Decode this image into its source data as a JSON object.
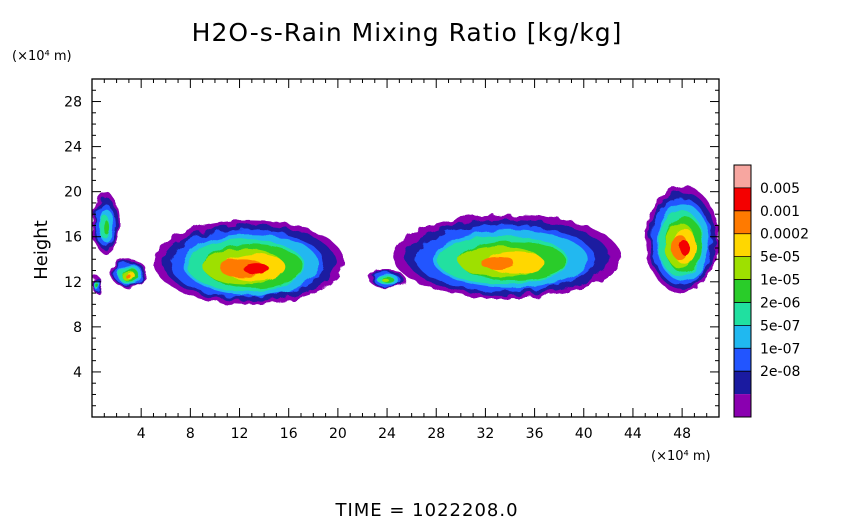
{
  "chart_data": {
    "type": "heatmap",
    "title": "H2O-s-Rain Mixing Ratio [kg/kg]",
    "ylabel": "Height",
    "y_unit": "(×10⁴ m)",
    "x_unit": "(×10⁴ m)",
    "x_ticks": [
      "4",
      "8",
      "12",
      "16",
      "20",
      "24",
      "28",
      "32",
      "36",
      "40",
      "44",
      "48"
    ],
    "y_ticks": [
      "4",
      "8",
      "12",
      "16",
      "20",
      "24",
      "28"
    ],
    "xlim": [
      0,
      51
    ],
    "ylim": [
      0,
      30
    ],
    "colorbar": {
      "labels": [
        "0.005",
        "0.001",
        "0.0002",
        "5e-05",
        "1e-05",
        "2e-06",
        "5e-07",
        "1e-07",
        "2e-08"
      ],
      "colors": [
        "#f7a6a0",
        "#f40000",
        "#ff7a00",
        "#ffd700",
        "#9ee000",
        "#29cc29",
        "#20e0a0",
        "#20b8f0",
        "#2255ff",
        "#1a1aa0",
        "#8a00b0"
      ]
    },
    "regions": [
      {
        "name": "left-edge-upper",
        "x": [
          0,
          2.2
        ],
        "y": [
          14.5,
          20
        ],
        "level": 2
      },
      {
        "name": "left-edge-lower",
        "x": [
          0,
          0.8
        ],
        "y": [
          11,
          12.5
        ],
        "level": 2
      },
      {
        "name": "left-blob",
        "x": [
          1.5,
          4.5
        ],
        "y": [
          11.5,
          14
        ],
        "level": 5
      },
      {
        "name": "main-cluster-west",
        "x": [
          5,
          20.5
        ],
        "y": [
          10,
          17.5
        ],
        "level": 6
      },
      {
        "name": "small-patch",
        "x": [
          22.5,
          25.5
        ],
        "y": [
          11.5,
          13
        ],
        "level": 3
      },
      {
        "name": "main-cluster-east",
        "x": [
          24.5,
          43
        ],
        "y": [
          10.5,
          18
        ],
        "level": 5
      },
      {
        "name": "right-edge",
        "x": [
          45,
          51
        ],
        "y": [
          11,
          20.5
        ],
        "level": 6
      }
    ],
    "grid": false,
    "legend": "right"
  },
  "footer": {
    "time_label": "TIME = 1022208.0"
  }
}
